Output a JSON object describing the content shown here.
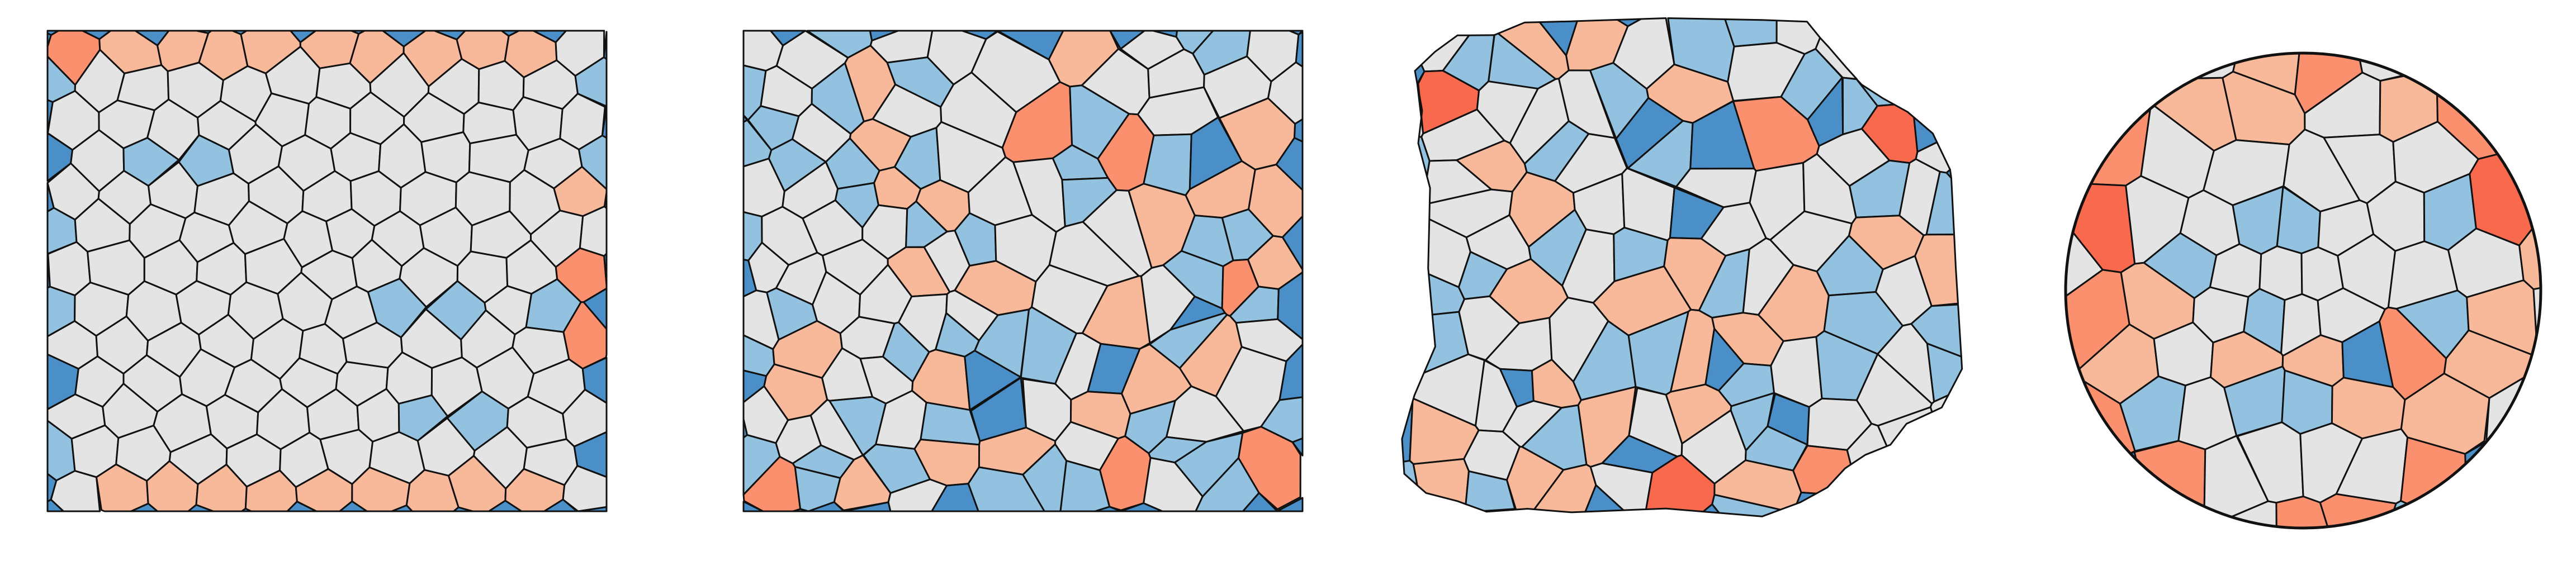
{
  "figure": {
    "type": "polygon-tiling-panels",
    "panel_count": 4,
    "colors": {
      "square": "#4a8fc8",
      "pentagon": "#93c2e0",
      "hexagon": "#e4e4e4",
      "heptagon": "#f8b99b",
      "octagon": "#fb906f",
      "nonagon": "#f8694e",
      "decagon": "#ee4a38",
      "hendecagon": "#d92c26",
      "dodecagon": "#c21b1e",
      "edge": "#111111",
      "background": "#ffffff"
    },
    "panels": [
      {
        "name": "panel-1",
        "layout": "jittered-honeycomb",
        "cols": 11,
        "rows": 13,
        "jitter": 0.22,
        "seed": 11
      },
      {
        "name": "panel-2",
        "layout": "irregular-voronoi",
        "cols": 12,
        "rows": 13,
        "jitter": 0.42,
        "seed": 27
      },
      {
        "name": "panel-3",
        "layout": "distorted-voronoi",
        "cols": 11,
        "rows": 12,
        "jitter": 0.55,
        "seed": 41
      },
      {
        "name": "panel-4",
        "layout": "spherical-polyhedron",
        "cols": 10,
        "rows": 10,
        "jitter": 0.2,
        "seed": 63
      }
    ]
  }
}
